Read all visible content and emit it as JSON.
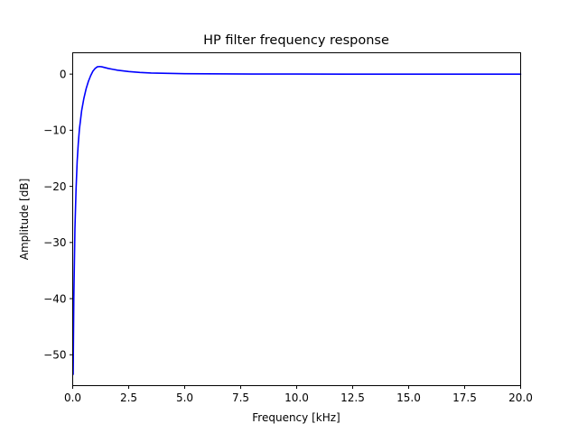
{
  "chart_data": {
    "type": "line",
    "title": "HP filter frequency response",
    "xlabel": "Frequency [kHz]",
    "ylabel": "Amplitude [dB]",
    "xlim": [
      0,
      20
    ],
    "ylim": [
      -55.5,
      3.8
    ],
    "xticks": [
      0.0,
      2.5,
      5.0,
      7.5,
      10.0,
      12.5,
      15.0,
      17.5,
      20.0
    ],
    "xtick_labels": [
      "0.0",
      "2.5",
      "5.0",
      "7.5",
      "10.0",
      "12.5",
      "15.0",
      "17.5",
      "20.0"
    ],
    "yticks": [
      0,
      -10,
      -20,
      -30,
      -40,
      -50
    ],
    "ytick_labels": [
      "0",
      "−10",
      "−20",
      "−30",
      "−40",
      "−50"
    ],
    "grid": false,
    "legend": "none",
    "series": [
      {
        "color": "#0000ff",
        "x": [
          0.02,
          0.05,
          0.1,
          0.15,
          0.2,
          0.25,
          0.3,
          0.4,
          0.5,
          0.6,
          0.7,
          0.8,
          0.9,
          1.0,
          1.1,
          1.2,
          1.3,
          1.4,
          1.6,
          1.8,
          2.0,
          2.5,
          3.0,
          3.5,
          4.0,
          5.0,
          6.0,
          8.0,
          10.0,
          12.5,
          15.0,
          17.5,
          20.0
        ],
        "y": [
          -53.5,
          -40.0,
          -27.5,
          -20.5,
          -15.5,
          -12.3,
          -9.8,
          -6.5,
          -4.3,
          -2.6,
          -1.3,
          -0.3,
          0.5,
          1.0,
          1.3,
          1.35,
          1.3,
          1.2,
          1.0,
          0.85,
          0.7,
          0.45,
          0.3,
          0.2,
          0.15,
          0.08,
          0.05,
          0.02,
          0.01,
          0.0,
          0.0,
          0.0,
          0.0
        ]
      }
    ]
  }
}
